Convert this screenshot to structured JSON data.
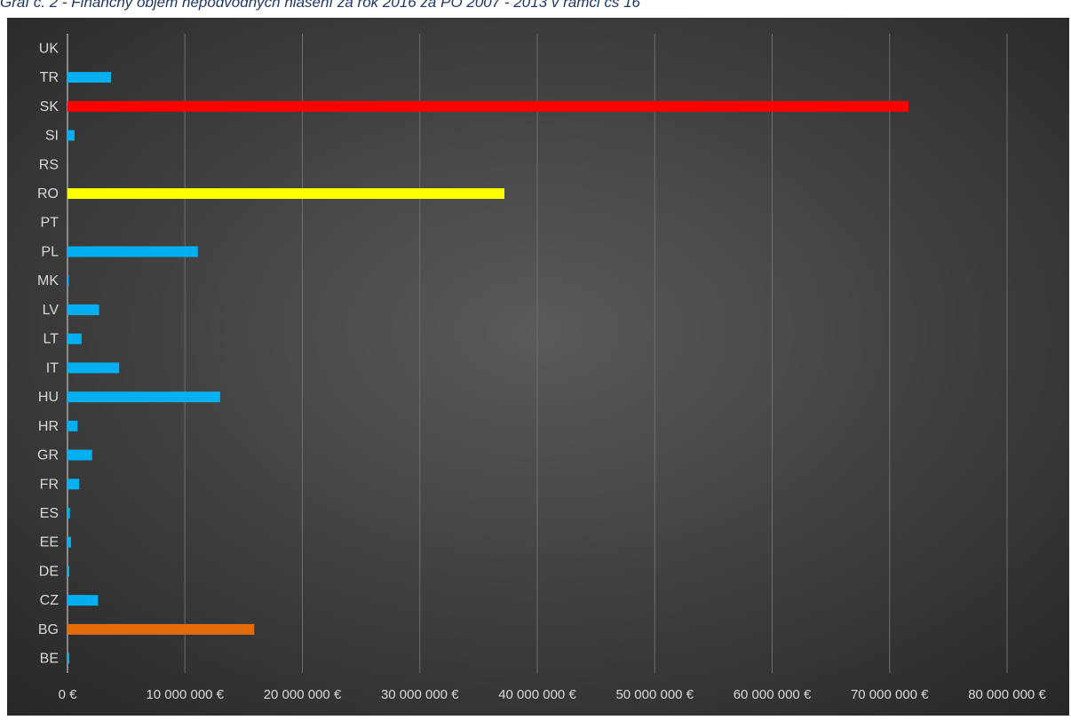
{
  "caption": "Graf č. 2 - Finančný objem nepodvodných hlásení za rok 2016 za PO 2007 - 2013 v rámci čs 16",
  "chart_data": {
    "type": "bar",
    "orientation": "horizontal",
    "title": "",
    "xlabel": "",
    "ylabel": "",
    "categories": [
      "BE",
      "BG",
      "CZ",
      "DE",
      "EE",
      "ES",
      "FR",
      "GR",
      "HR",
      "HU",
      "IT",
      "LT",
      "LV",
      "MK",
      "PL",
      "PT",
      "RO",
      "RS",
      "SI",
      "SK",
      "TR",
      "UK"
    ],
    "values": [
      150000,
      15900000,
      2600000,
      150000,
      300000,
      200000,
      1000000,
      2100000,
      850000,
      13000000,
      4400000,
      1200000,
      2700000,
      50000,
      11100000,
      0,
      37200000,
      0,
      600000,
      71600000,
      3700000,
      0
    ],
    "bar_colors": [
      "#00b0f0",
      "#e36c09",
      "#00b0f0",
      "#00b0f0",
      "#00b0f0",
      "#00b0f0",
      "#00b0f0",
      "#00b0f0",
      "#00b0f0",
      "#00b0f0",
      "#00b0f0",
      "#00b0f0",
      "#00b0f0",
      "#00b0f0",
      "#00b0f0",
      "#00b0f0",
      "#ffff00",
      "#00b0f0",
      "#00b0f0",
      "#ff0000",
      "#00b0f0",
      "#00b0f0"
    ],
    "xlim": [
      0,
      80000000
    ],
    "xticks": [
      0,
      10000000,
      20000000,
      30000000,
      40000000,
      50000000,
      60000000,
      70000000,
      80000000
    ],
    "xtick_labels": [
      "0 €",
      "10 000 000 €",
      "20 000 000 €",
      "30 000 000 €",
      "40 000 000 €",
      "50 000 000 €",
      "60 000 000 €",
      "70 000 000 €",
      "80 000 000 €"
    ],
    "grid": "vertical",
    "legend": "none",
    "background": "dark radial gradient"
  }
}
